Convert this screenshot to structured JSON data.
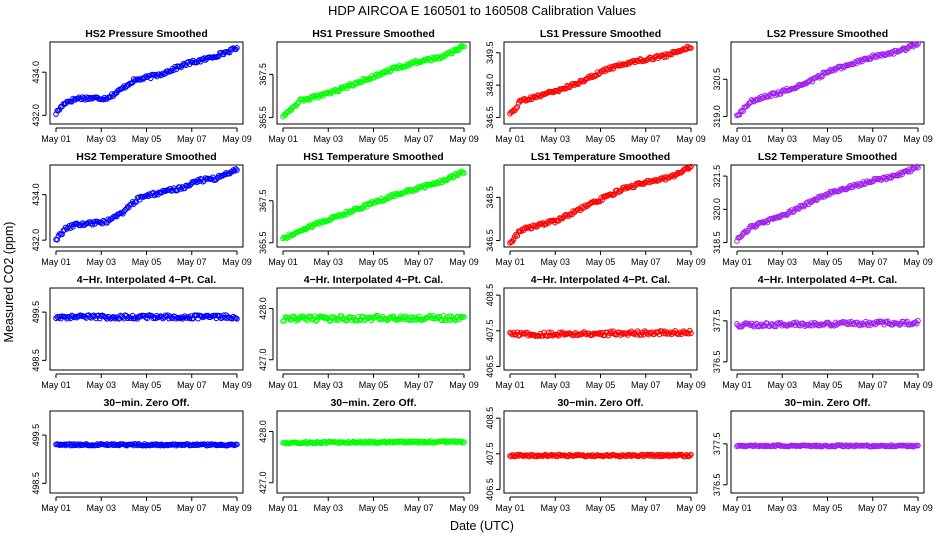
{
  "title": "HDP   AIRCOA E   160501 to 160508   Calibration Values",
  "xlabel": "Date (UTC)",
  "ylabel": "Measured CO2 (ppm)",
  "chart_data": {
    "type": "scatter",
    "x_range_days": [
      1,
      9
    ],
    "x_ticks": [
      {
        "day": 1,
        "label": "May 01"
      },
      {
        "day": 3,
        "label": "May 03"
      },
      {
        "day": 5,
        "label": "May 05"
      },
      {
        "day": 7,
        "label": "May 07"
      },
      {
        "day": 9,
        "label": "May 09"
      }
    ],
    "panels": [
      {
        "title": "HS2 Pressure Smoothed",
        "color": "#0000ff",
        "ylim": [
          431.6,
          435.4
        ],
        "yticks": [
          "432.0",
          "434.0"
        ],
        "yvals": [
          432.0,
          434.0
        ],
        "trend": [
          [
            1.0,
            432.1
          ],
          [
            1.4,
            432.6
          ],
          [
            2.0,
            432.8
          ],
          [
            3.2,
            432.8
          ],
          [
            3.6,
            433.0
          ],
          [
            4.4,
            433.6
          ],
          [
            5.6,
            433.9
          ],
          [
            6.8,
            434.4
          ],
          [
            7.6,
            434.6
          ],
          [
            9.0,
            435.1
          ]
        ],
        "noise": 0.08
      },
      {
        "title": "HS1 Pressure Smoothed",
        "color": "#00ff00",
        "ylim": [
          365.2,
          369.0
        ],
        "yticks": [
          "365.5",
          "367.5"
        ],
        "yvals": [
          365.5,
          367.5
        ],
        "trend": [
          [
            1.0,
            365.6
          ],
          [
            1.8,
            366.3
          ],
          [
            3.0,
            366.6
          ],
          [
            4.0,
            367.0
          ],
          [
            5.0,
            367.4
          ],
          [
            6.0,
            367.8
          ],
          [
            7.0,
            368.1
          ],
          [
            8.0,
            368.3
          ],
          [
            9.0,
            368.8
          ]
        ],
        "noise": 0.08
      },
      {
        "title": "LS1 Pressure Smoothed",
        "color": "#ff0000",
        "ylim": [
          346.2,
          350.0
        ],
        "yticks": [
          "346.5",
          "348.0",
          "349.5"
        ],
        "yvals": [
          346.5,
          348.0,
          349.5
        ],
        "trend": [
          [
            1.0,
            346.6
          ],
          [
            1.5,
            347.3
          ],
          [
            3.0,
            347.7
          ],
          [
            4.0,
            348.1
          ],
          [
            5.0,
            348.6
          ],
          [
            6.0,
            349.0
          ],
          [
            7.0,
            349.2
          ],
          [
            8.0,
            349.4
          ],
          [
            9.0,
            349.8
          ]
        ],
        "noise": 0.08
      },
      {
        "title": "LS2 Pressure Smoothed",
        "color": "#a020f0",
        "ylim": [
          318.7,
          322.0
        ],
        "yticks": [
          "319.0",
          "320.5"
        ],
        "yvals": [
          319.0,
          320.5
        ],
        "trend": [
          [
            1.0,
            319.0
          ],
          [
            1.6,
            319.6
          ],
          [
            3.0,
            320.0
          ],
          [
            4.0,
            320.3
          ],
          [
            5.0,
            320.8
          ],
          [
            6.0,
            321.1
          ],
          [
            7.0,
            321.4
          ],
          [
            8.0,
            321.6
          ],
          [
            9.0,
            321.9
          ]
        ],
        "noise": 0.07
      },
      {
        "title": "HS2 Temperature Smoothed",
        "color": "#0000ff",
        "ylim": [
          431.7,
          435.3
        ],
        "yticks": [
          "432.0",
          "434.0"
        ],
        "yvals": [
          432.0,
          434.0
        ],
        "trend": [
          [
            1.0,
            432.0
          ],
          [
            1.4,
            432.5
          ],
          [
            2.0,
            432.7
          ],
          [
            3.2,
            432.8
          ],
          [
            3.8,
            433.1
          ],
          [
            4.6,
            433.8
          ],
          [
            5.6,
            434.1
          ],
          [
            6.6,
            434.3
          ],
          [
            7.2,
            434.6
          ],
          [
            8.0,
            434.7
          ],
          [
            9.0,
            435.1
          ]
        ],
        "noise": 0.08
      },
      {
        "title": "HS1 Temperature Smoothed",
        "color": "#00ff00",
        "ylim": [
          365.3,
          369.2
        ],
        "yticks": [
          "365.5",
          "367.5"
        ],
        "yvals": [
          365.5,
          367.5
        ],
        "trend": [
          [
            1.0,
            365.7
          ],
          [
            2.0,
            366.2
          ],
          [
            3.0,
            366.6
          ],
          [
            4.0,
            367.0
          ],
          [
            5.0,
            367.4
          ],
          [
            6.0,
            367.8
          ],
          [
            7.0,
            368.1
          ],
          [
            8.0,
            368.4
          ],
          [
            9.0,
            368.9
          ]
        ],
        "noise": 0.08
      },
      {
        "title": "LS1 Temperature Smoothed",
        "color": "#ff0000",
        "ylim": [
          346.2,
          350.0
        ],
        "yticks": [
          "346.5",
          "348.5"
        ],
        "yvals": [
          346.5,
          348.5
        ],
        "trend": [
          [
            1.0,
            346.4
          ],
          [
            1.5,
            347.0
          ],
          [
            3.0,
            347.4
          ],
          [
            4.0,
            347.9
          ],
          [
            5.0,
            348.4
          ],
          [
            6.0,
            348.9
          ],
          [
            7.0,
            349.2
          ],
          [
            8.0,
            349.4
          ],
          [
            9.0,
            349.9
          ]
        ],
        "noise": 0.08
      },
      {
        "title": "LS2 Temperature Smoothed",
        "color": "#a020f0",
        "ylim": [
          318.3,
          322.0
        ],
        "yticks": [
          "318.5",
          "320.0",
          "321.5"
        ],
        "yvals": [
          318.5,
          320.0,
          321.5
        ],
        "trend": [
          [
            1.0,
            318.6
          ],
          [
            1.6,
            319.2
          ],
          [
            3.0,
            319.7
          ],
          [
            4.0,
            320.2
          ],
          [
            5.0,
            320.7
          ],
          [
            6.0,
            321.0
          ],
          [
            7.0,
            321.3
          ],
          [
            8.0,
            321.5
          ],
          [
            9.0,
            321.9
          ]
        ],
        "noise": 0.07
      },
      {
        "title": "4−Hr. Interpolated 4−Pt. Cal.",
        "color": "#0000ff",
        "ylim": [
          498.3,
          500.0
        ],
        "yticks": [
          "498.5",
          "499.5"
        ],
        "yvals": [
          498.5,
          499.5
        ],
        "trend": [
          [
            1.0,
            499.4
          ],
          [
            9.0,
            499.4
          ]
        ],
        "noise": 0.04
      },
      {
        "title": "4−Hr. Interpolated 4−Pt. Cal.",
        "color": "#00ff00",
        "ylim": [
          426.8,
          428.4
        ],
        "yticks": [
          "427.0",
          "428.0"
        ],
        "yvals": [
          427.0,
          428.0
        ],
        "trend": [
          [
            1.0,
            427.8
          ],
          [
            9.0,
            427.82
          ]
        ],
        "noise": 0.05
      },
      {
        "title": "4−Hr. Interpolated 4−Pt. Cal.",
        "color": "#ff0000",
        "ylim": [
          406.4,
          408.7
        ],
        "yticks": [
          "406.5",
          "407.5",
          "408.5"
        ],
        "yvals": [
          406.5,
          407.5,
          408.5
        ],
        "trend": [
          [
            1.0,
            407.4
          ],
          [
            9.0,
            407.45
          ]
        ],
        "noise": 0.06
      },
      {
        "title": "4−Hr. Interpolated 4−Pt. Cal.",
        "color": "#a020f0",
        "ylim": [
          376.3,
          378.3
        ],
        "yticks": [
          "376.5",
          "377.5"
        ],
        "yvals": [
          376.5,
          377.5
        ],
        "trend": [
          [
            1.0,
            377.4
          ],
          [
            9.0,
            377.45
          ]
        ],
        "noise": 0.05
      },
      {
        "title": "30−min. Zero Off.",
        "color": "#0000ff",
        "ylim": [
          498.3,
          500.0
        ],
        "yticks": [
          "498.5",
          "499.5"
        ],
        "yvals": [
          498.5,
          499.5
        ],
        "trend": [
          [
            1.0,
            499.3
          ],
          [
            9.0,
            499.3
          ]
        ],
        "noise": 0.02
      },
      {
        "title": "30−min. Zero Off.",
        "color": "#00ff00",
        "ylim": [
          426.8,
          428.4
        ],
        "yticks": [
          "427.0",
          "428.0"
        ],
        "yvals": [
          427.0,
          428.0
        ],
        "trend": [
          [
            1.0,
            427.78
          ],
          [
            9.0,
            427.8
          ]
        ],
        "noise": 0.02
      },
      {
        "title": "30−min. Zero Off.",
        "color": "#ff0000",
        "ylim": [
          406.4,
          408.7
        ],
        "yticks": [
          "406.5",
          "407.5",
          "408.5"
        ],
        "yvals": [
          406.5,
          407.5,
          408.5
        ],
        "trend": [
          [
            1.0,
            407.45
          ],
          [
            9.0,
            407.45
          ]
        ],
        "noise": 0.03
      },
      {
        "title": "30−min. Zero Off.",
        "color": "#a020f0",
        "ylim": [
          376.3,
          378.3
        ],
        "yticks": [
          "376.5",
          "377.5"
        ],
        "yvals": [
          376.5,
          377.5
        ],
        "trend": [
          [
            1.0,
            377.45
          ],
          [
            9.0,
            377.45
          ]
        ],
        "noise": 0.02
      }
    ]
  }
}
